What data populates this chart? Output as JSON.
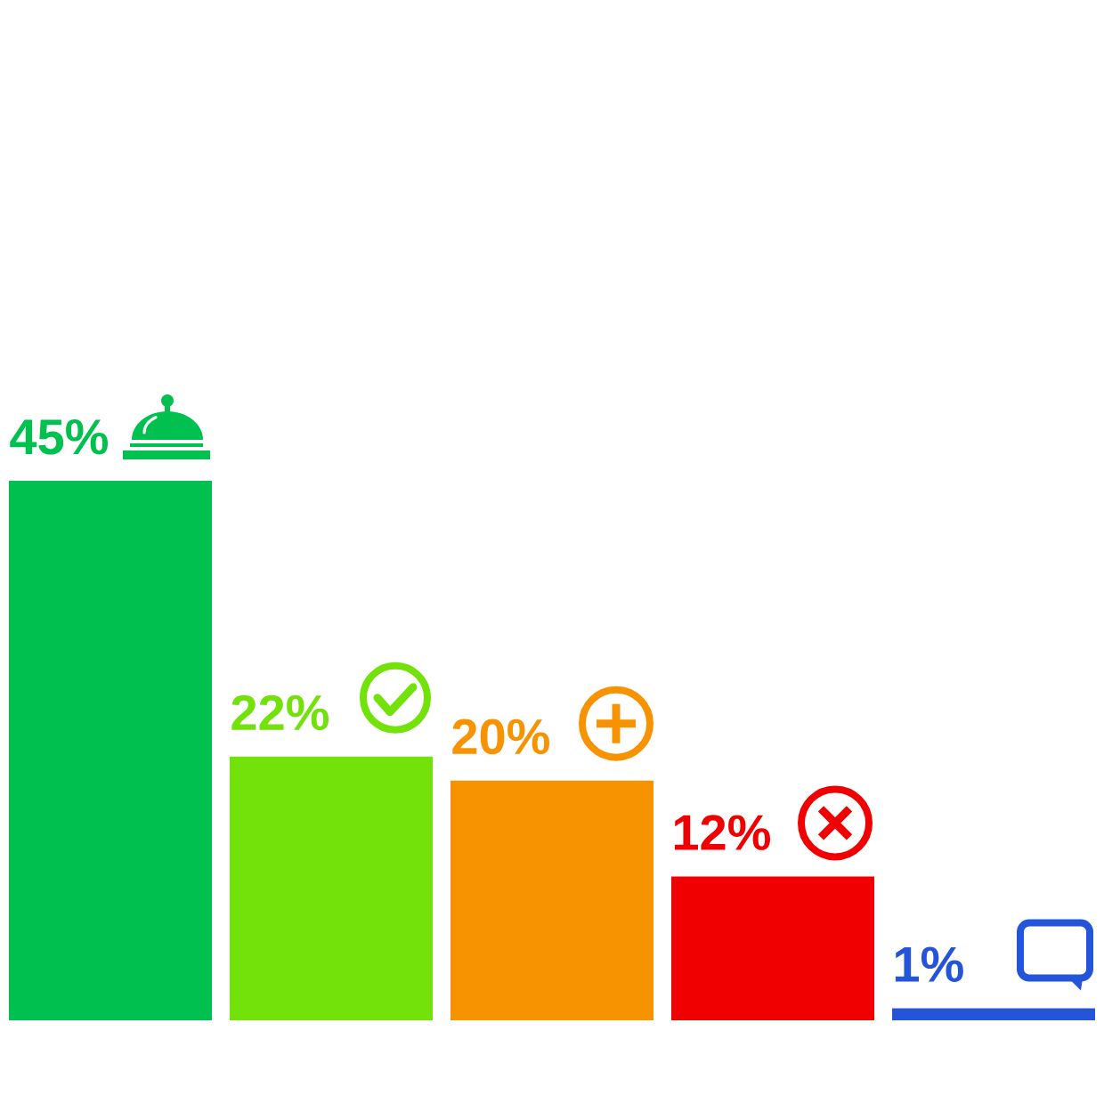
{
  "chart_data": {
    "type": "bar",
    "categories": [
      null,
      null,
      null,
      null,
      null
    ],
    "values": [
      45,
      22,
      20,
      12,
      1
    ],
    "colors": [
      "#00c04f",
      "#72e20a",
      "#f79300",
      "#f00000",
      "#2454da"
    ],
    "value_labels": [
      "45%",
      "22%",
      "20%",
      "12%",
      "1%"
    ]
  }
}
